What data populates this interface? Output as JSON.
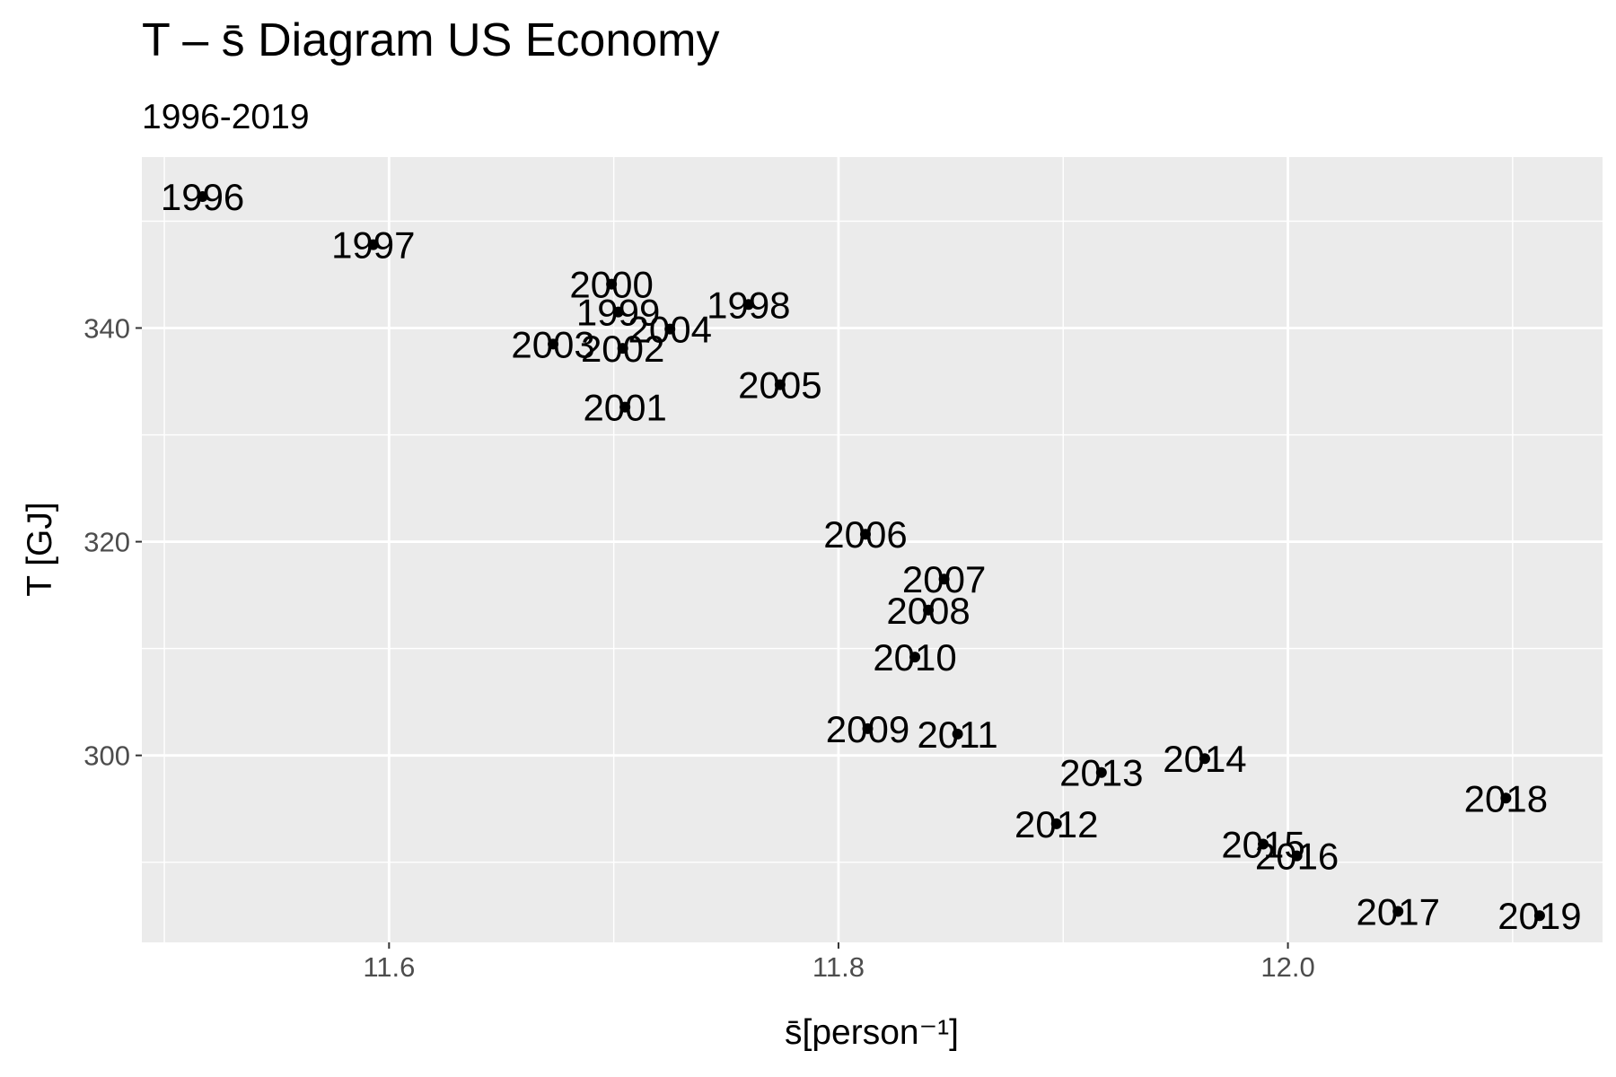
{
  "chart_data": {
    "type": "scatter",
    "title": "T – s̄ Diagram US Economy",
    "subtitle": "1996-2019",
    "xlabel": "s̄[person⁻¹]",
    "ylabel": "T [GJ]",
    "xlim": [
      11.49,
      12.14
    ],
    "ylim": [
      282.5,
      356
    ],
    "x_ticks": [
      11.6,
      11.8,
      12.0
    ],
    "x_tick_labels": [
      "11.6",
      "11.8",
      "12.0"
    ],
    "y_ticks": [
      300,
      320,
      340
    ],
    "y_tick_labels": [
      "300",
      "320",
      "340"
    ],
    "grid": true,
    "background": "#ebebeb",
    "point_color": "#000000",
    "points": [
      {
        "label": "1996",
        "x": 11.517,
        "y": 352.3
      },
      {
        "label": "1997",
        "x": 11.593,
        "y": 347.8
      },
      {
        "label": "1998",
        "x": 11.76,
        "y": 342.2
      },
      {
        "label": "1999",
        "x": 11.702,
        "y": 341.5
      },
      {
        "label": "2000",
        "x": 11.699,
        "y": 344.1
      },
      {
        "label": "2001",
        "x": 11.705,
        "y": 332.6
      },
      {
        "label": "2002",
        "x": 11.704,
        "y": 338.1
      },
      {
        "label": "2003",
        "x": 11.673,
        "y": 338.5
      },
      {
        "label": "2004",
        "x": 11.725,
        "y": 339.9
      },
      {
        "label": "2005",
        "x": 11.774,
        "y": 334.7
      },
      {
        "label": "2006",
        "x": 11.812,
        "y": 320.7
      },
      {
        "label": "2007",
        "x": 11.847,
        "y": 316.5
      },
      {
        "label": "2008",
        "x": 11.84,
        "y": 313.6
      },
      {
        "label": "2009",
        "x": 11.813,
        "y": 302.5
      },
      {
        "label": "2010",
        "x": 11.834,
        "y": 309.2
      },
      {
        "label": "2011",
        "x": 11.853,
        "y": 302.0
      },
      {
        "label": "2012",
        "x": 11.897,
        "y": 293.6
      },
      {
        "label": "2013",
        "x": 11.917,
        "y": 298.4
      },
      {
        "label": "2014",
        "x": 11.963,
        "y": 299.7
      },
      {
        "label": "2015",
        "x": 11.989,
        "y": 291.7
      },
      {
        "label": "2016",
        "x": 12.004,
        "y": 290.6
      },
      {
        "label": "2017",
        "x": 12.049,
        "y": 285.4
      },
      {
        "label": "2018",
        "x": 12.097,
        "y": 296.0
      },
      {
        "label": "2019",
        "x": 12.112,
        "y": 285.0
      }
    ]
  }
}
